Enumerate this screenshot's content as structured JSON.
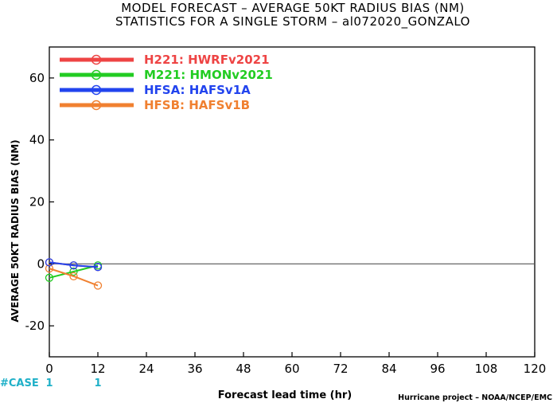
{
  "title_line1": "MODEL FORECAST – AVERAGE 50KT RADIUS BIAS (NM)",
  "title_line2": "STATISTICS FOR A SINGLE STORM – al072020_GONZALO",
  "credit": "Hurricane project – NOAA/NCEP/EMC",
  "case_label": "#CASE",
  "case_counts": [
    {
      "x": 0,
      "label": "1"
    },
    {
      "x": 12,
      "label": "1"
    }
  ],
  "chart_data": {
    "type": "line",
    "xlabel": "Forecast lead time (hr)",
    "ylabel": "AVERAGE 50KT RADIUS BIAS (NM)",
    "xlim": [
      0,
      120
    ],
    "ylim": [
      -30,
      70
    ],
    "xticks": [
      0,
      12,
      24,
      36,
      48,
      60,
      72,
      84,
      96,
      108,
      120
    ],
    "yticks": [
      -20,
      0,
      20,
      40,
      60
    ],
    "grid": false,
    "zero_line": true,
    "legend_placement": "top-left",
    "series": [
      {
        "name": "H221:  HWRFv2021",
        "color": "#ee4444",
        "x": [
          0,
          6,
          12
        ],
        "y": [
          0.5,
          -0.5,
          -1.0
        ]
      },
      {
        "name": "M221:  HMONv2021",
        "color": "#22cc22",
        "x": [
          0,
          6,
          12
        ],
        "y": [
          -4.5,
          -2.5,
          -0.5
        ]
      },
      {
        "name": "HFSA:  HAFSv1A",
        "color": "#2244ee",
        "x": [
          0,
          6,
          12
        ],
        "y": [
          0.5,
          -0.5,
          -1.0
        ]
      },
      {
        "name": "HFSB:  HAFSv1B",
        "color": "#f08030",
        "x": [
          0,
          6,
          12
        ],
        "y": [
          -1.5,
          -4.0,
          -7.0
        ]
      }
    ]
  }
}
